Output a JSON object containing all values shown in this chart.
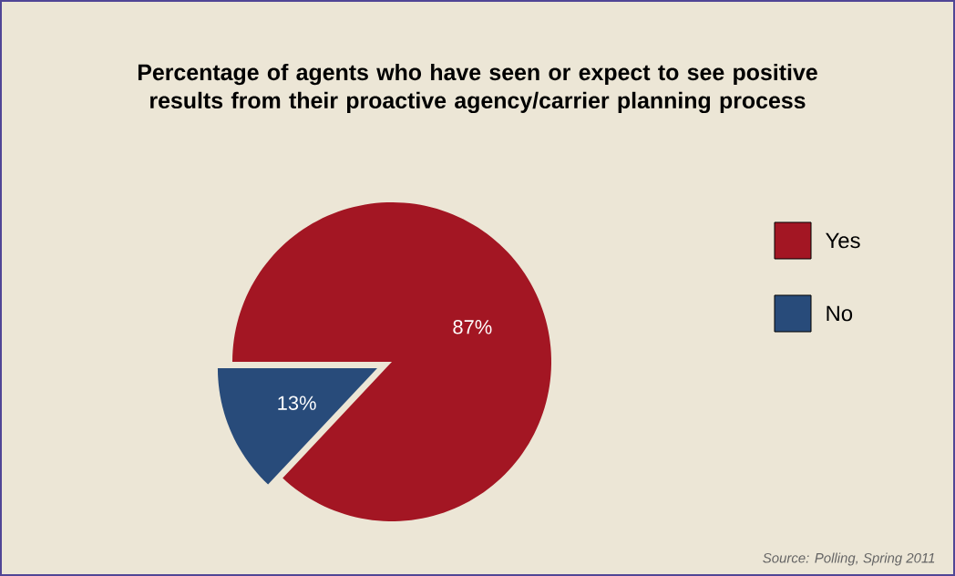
{
  "chart_data": {
    "type": "pie",
    "title": "Percentage of agents who have seen or expect to see positive results from their proactive agency/carrier planning process",
    "categories": [
      "Yes",
      "No"
    ],
    "values": [
      87,
      13
    ],
    "colors": [
      "#a31623",
      "#284b7a"
    ],
    "value_labels": [
      "87%",
      "13%"
    ],
    "legend": "right",
    "annotations": [
      "Source:  Polling, Spring 2011"
    ]
  }
}
